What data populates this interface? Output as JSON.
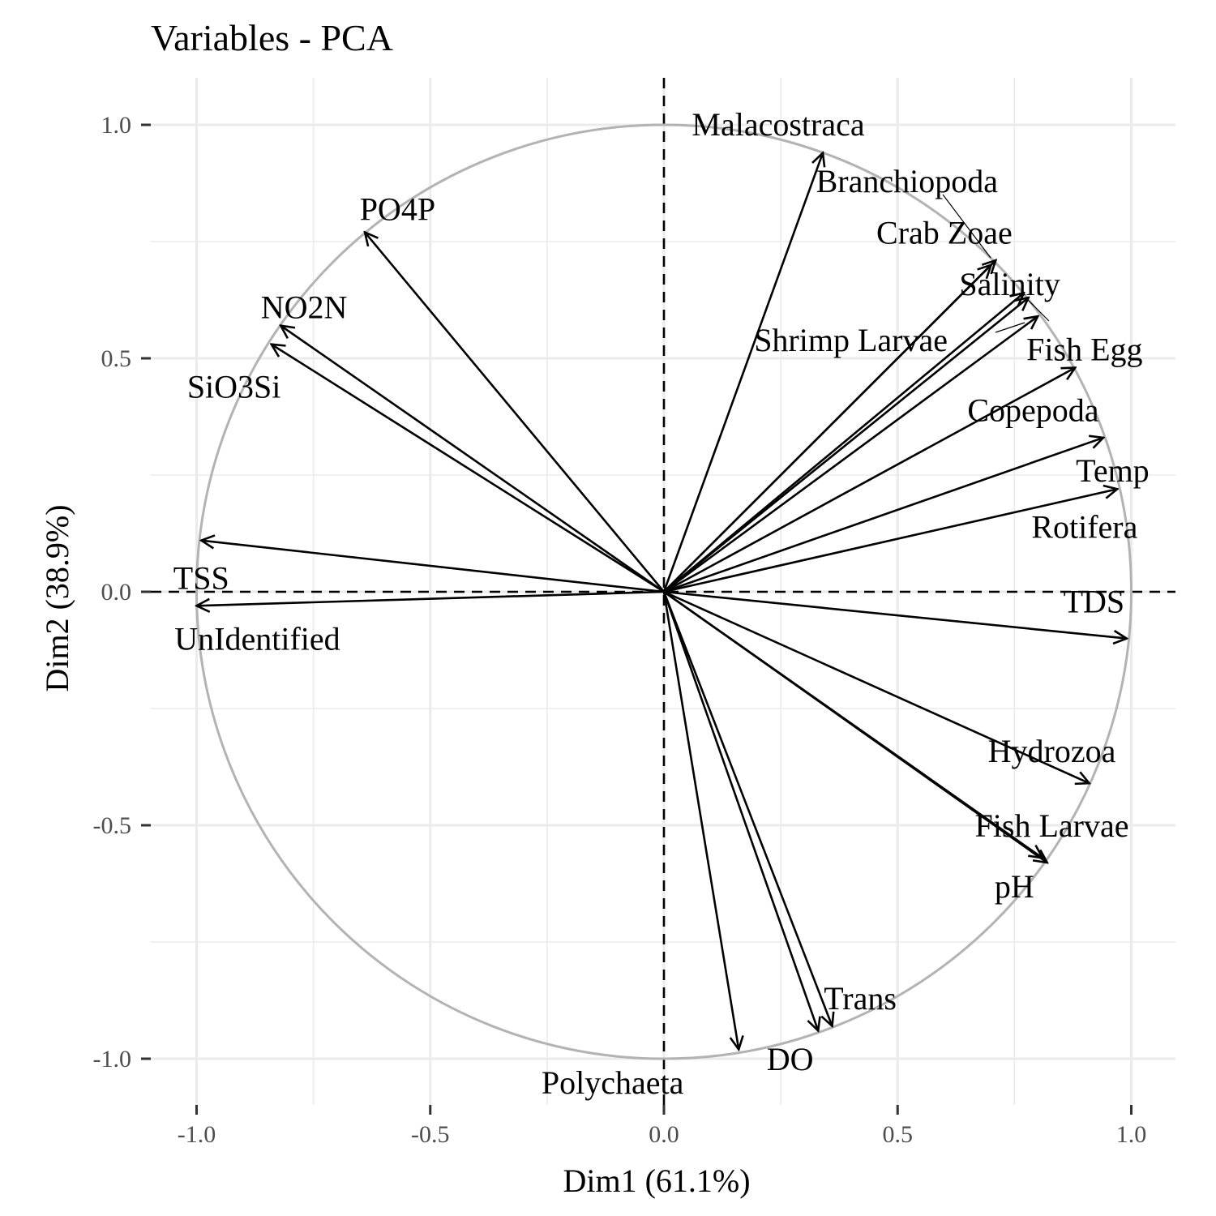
{
  "chart_data": {
    "type": "scatter",
    "title": "Variables - PCA",
    "xlabel": "Dim1 (61.1%)",
    "ylabel": "Dim2 (38.9%)",
    "xlim": [
      -1.1,
      1.1
    ],
    "ylim": [
      -1.1,
      1.1
    ],
    "xticks": [
      -1.0,
      -0.5,
      0.0,
      0.5,
      1.0
    ],
    "yticks": [
      -1.0,
      -0.5,
      0.0,
      0.5,
      1.0
    ],
    "xtick_labels": [
      "-1.0",
      "-0.5",
      "0.0",
      "0.5",
      "1.0"
    ],
    "ytick_labels": [
      "-1.0",
      "-0.5",
      "0.0",
      "0.5",
      "1.0"
    ],
    "grid": true,
    "unit_circle": true,
    "colors": {
      "arrow": "#000000",
      "circle": "#b3b3b3",
      "grid": "#ebebeb",
      "tick_label": "#4d4d4d"
    },
    "variables": [
      {
        "name": "Malacostraca",
        "x": 0.34,
        "y": 0.94
      },
      {
        "name": "Branchiopoda",
        "x": 0.71,
        "y": 0.71
      },
      {
        "name": "Crab Zoae",
        "x": 0.7,
        "y": 0.7
      },
      {
        "name": "Salinity",
        "x": 0.77,
        "y": 0.64
      },
      {
        "name": "Shrimp Larvae",
        "x": 0.78,
        "y": 0.63
      },
      {
        "name": "Fish Egg",
        "x": 0.8,
        "y": 0.59
      },
      {
        "name": "Copepoda",
        "x": 0.88,
        "y": 0.48
      },
      {
        "name": "Temp",
        "x": 0.94,
        "y": 0.33
      },
      {
        "name": "Rotifera",
        "x": 0.97,
        "y": 0.22
      },
      {
        "name": "TDS",
        "x": 0.99,
        "y": -0.1
      },
      {
        "name": "Hydrozoa",
        "x": 0.91,
        "y": -0.41
      },
      {
        "name": "Fish Larvae",
        "x": 0.81,
        "y": -0.57
      },
      {
        "name": "pH",
        "x": 0.82,
        "y": -0.58
      },
      {
        "name": "Trans",
        "x": 0.36,
        "y": -0.93
      },
      {
        "name": "DO",
        "x": 0.33,
        "y": -0.94
      },
      {
        "name": "Polychaeta",
        "x": 0.16,
        "y": -0.98
      },
      {
        "name": "PO4P",
        "x": -0.64,
        "y": 0.77
      },
      {
        "name": "NO2N",
        "x": -0.82,
        "y": 0.57
      },
      {
        "name": "SiO3Si",
        "x": -0.84,
        "y": 0.53
      },
      {
        "name": "TSS",
        "x": -0.99,
        "y": 0.11
      },
      {
        "name": "UnIdentified",
        "x": -1.0,
        "y": -0.03
      }
    ]
  }
}
